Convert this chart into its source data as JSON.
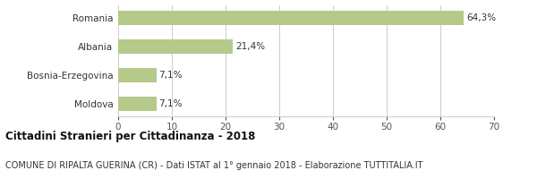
{
  "categories": [
    "Moldova",
    "Bosnia-Erzegovina",
    "Albania",
    "Romania"
  ],
  "values": [
    7.1,
    7.1,
    21.4,
    64.3
  ],
  "labels": [
    "7,1%",
    "7,1%",
    "21,4%",
    "64,3%"
  ],
  "bar_color": "#b5c98a",
  "background_color": "#ffffff",
  "xlim": [
    0,
    70
  ],
  "xticks": [
    0,
    10,
    20,
    30,
    40,
    50,
    60,
    70
  ],
  "title_bold": "Cittadini Stranieri per Cittadinanza - 2018",
  "subtitle": "COMUNE DI RIPALTA GUERINA (CR) - Dati ISTAT al 1° gennaio 2018 - Elaborazione TUTTITALIA.IT",
  "title_fontsize": 8.5,
  "subtitle_fontsize": 7.0,
  "label_fontsize": 7.5,
  "tick_fontsize": 7.5,
  "ylabel_fontsize": 7.5,
  "grid_color": "#cccccc"
}
